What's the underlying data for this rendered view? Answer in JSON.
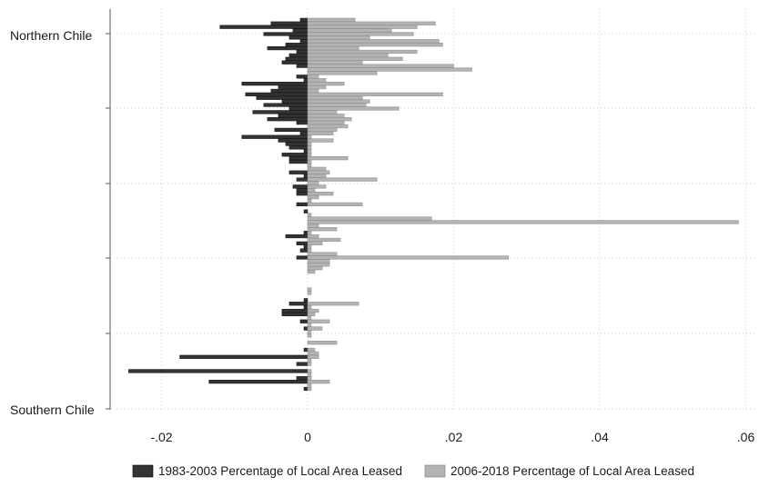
{
  "chart_data": {
    "type": "bar",
    "orientation": "horizontal",
    "title": "",
    "xlabel": "",
    "ylabel": "",
    "y_labels": {
      "top": "Northern Chile",
      "bottom": "Southern Chile"
    },
    "xlim": [
      -0.025,
      0.06
    ],
    "x_ticks": [
      -0.02,
      0,
      0.02,
      0.04,
      0.06
    ],
    "x_tick_labels": [
      "-.02",
      "0",
      ".02",
      ".04",
      ".06"
    ],
    "grid": true,
    "legend_position": "bottom",
    "series": [
      {
        "name": "1983-2003 Percentage of Local Area Leased",
        "color": "#333333",
        "values": [
          -0.001,
          -0.005,
          -0.012,
          -0.002,
          -0.006,
          -0.0025,
          -0.001,
          -0.003,
          -0.0055,
          -0.0015,
          -0.0025,
          -0.003,
          -0.0035,
          -0.0015,
          0,
          0,
          -0.0015,
          -0.0005,
          -0.009,
          -0.004,
          -0.005,
          -0.0085,
          -0.007,
          -0.0035,
          -0.006,
          -0.0025,
          -0.0075,
          -0.004,
          -0.0055,
          -0.0015,
          0,
          -0.0045,
          -0.001,
          -0.009,
          -0.004,
          -0.003,
          -0.0025,
          -0.0005,
          -0.0035,
          -0.0025,
          -0.0025,
          0,
          0,
          -0.0025,
          -0.0005,
          -0.0015,
          0,
          -0.002,
          -0.0015,
          -0.0015,
          0,
          0,
          -0.0015,
          0,
          -0.0005,
          0,
          0,
          0,
          0,
          0,
          -0.0005,
          -0.003,
          0,
          -0.0015,
          -0.0005,
          -0.001,
          0,
          -0.0015,
          0,
          0,
          0,
          0,
          0,
          0,
          0,
          0,
          0,
          0,
          0,
          -0.0005,
          -0.0025,
          -0.0005,
          -0.0035,
          -0.0035,
          0,
          -0.001,
          0,
          -0.0005,
          0,
          0,
          0,
          0,
          0,
          -0.0005,
          0,
          -0.0175,
          0,
          -0.0015,
          0,
          -0.0245,
          0,
          -0.0015,
          -0.0135,
          0,
          -0.0005
        ]
      },
      {
        "name": "2006-2018 Percentage of Local Area Leased",
        "color": "#b3b3b3",
        "values": [
          0.0065,
          0.0175,
          0.015,
          0.0115,
          0.0145,
          0.0085,
          0.018,
          0.0185,
          0.007,
          0.015,
          0.011,
          0.013,
          0.0075,
          0.02,
          0.0225,
          0.0095,
          0.0015,
          0.0025,
          0.005,
          0.0025,
          0.0015,
          0.0185,
          0.0075,
          0.0085,
          0.008,
          0.0125,
          0.004,
          0.005,
          0.006,
          0.005,
          0.0055,
          0.004,
          0.0035,
          0.0005,
          0.0035,
          0.0005,
          0.0005,
          0.0005,
          0.0005,
          0.0055,
          0.0005,
          0.0005,
          0.0025,
          0.003,
          0.0025,
          0.0095,
          0.0015,
          0.0025,
          0.001,
          0.0035,
          0.0015,
          0.0005,
          0.0075,
          0,
          0,
          0.0005,
          0.017,
          0.059,
          0.0015,
          0.004,
          0.0005,
          0.0015,
          0.0045,
          0.002,
          0.0005,
          0.0005,
          0.004,
          0.0275,
          0.003,
          0.003,
          0.002,
          0.001,
          0,
          0,
          0,
          0,
          0.0005,
          0.0005,
          0,
          0,
          0.007,
          0.0005,
          0.0015,
          0.001,
          0.0005,
          0.003,
          0.0005,
          0.002,
          0.0005,
          0.0005,
          0,
          0.004,
          0,
          0.001,
          0.0015,
          0.0015,
          0.0005,
          0.0005,
          0,
          0.0005,
          0.0005,
          0.0005,
          0.003,
          0.0005,
          0.0005
        ]
      }
    ]
  }
}
